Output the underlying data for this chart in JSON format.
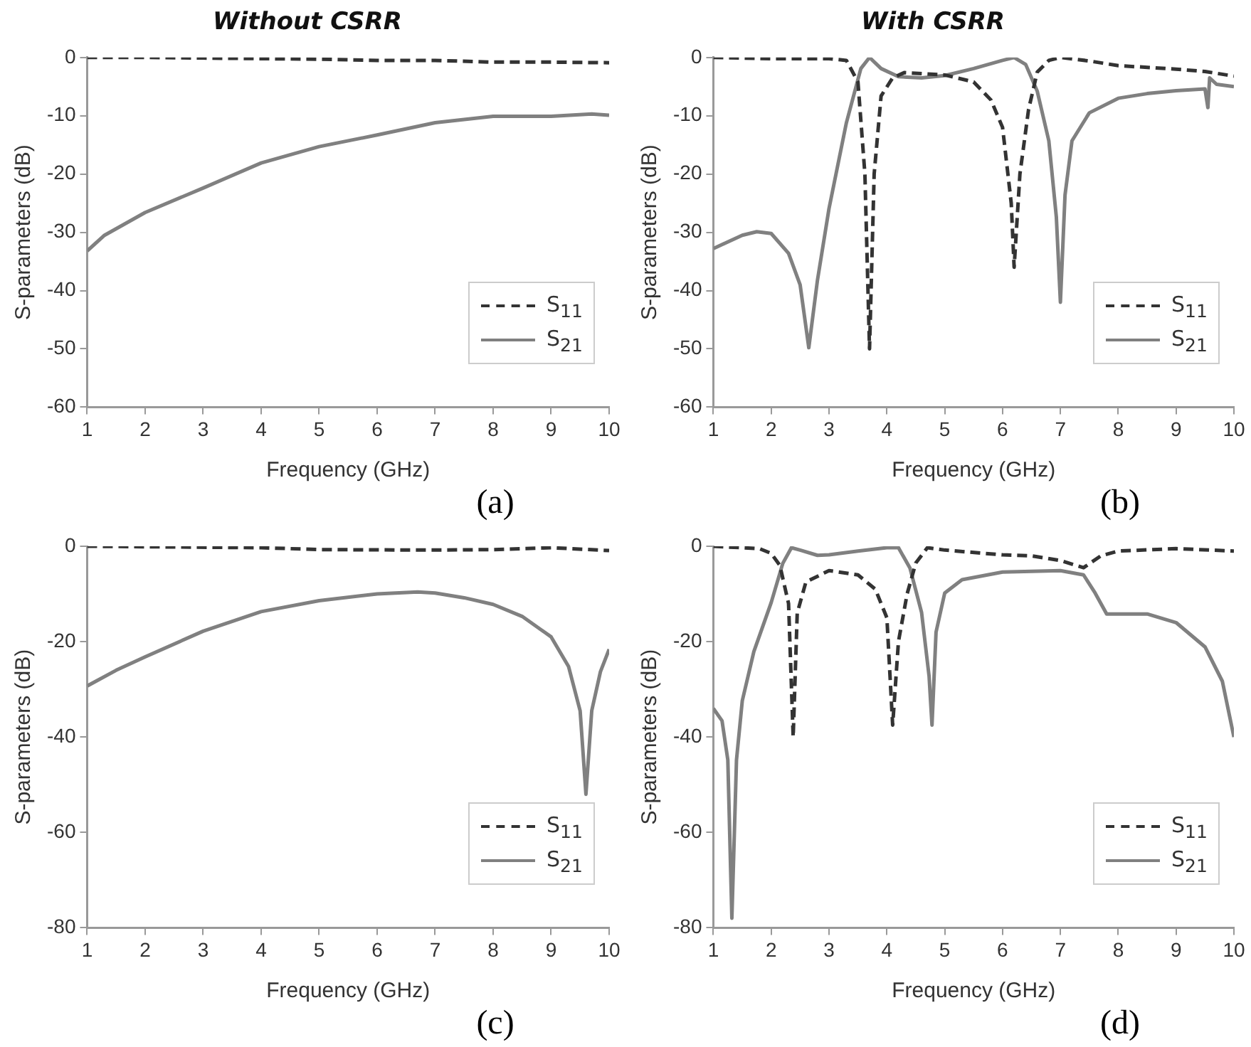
{
  "chart_data": [
    {
      "type": "line",
      "title": "Without CSRR",
      "xlabel": "Frequency (GHz)",
      "ylabel": "S-parameters (dB)",
      "annotations": [
        "(a)"
      ],
      "legend": "bottom right",
      "xlim": [
        1,
        10
      ],
      "xticks": [
        1,
        2,
        3,
        4,
        5,
        6,
        7,
        8,
        9,
        10
      ],
      "ylim": [
        -60,
        0
      ],
      "yticks": [
        -60,
        -50,
        -40,
        -30,
        -20,
        -10,
        0
      ],
      "series": [
        {
          "name": "S$_{11}$",
          "color": "#333333",
          "line_style": "dashed",
          "x": [
            1,
            2,
            3,
            4,
            5,
            6,
            7,
            8,
            9,
            10
          ],
          "values": [
            0,
            0,
            -0.1,
            -0.2,
            -0.3,
            -0.5,
            -0.5,
            -0.8,
            -0.8,
            -0.9
          ]
        },
        {
          "name": "S$_{21}$",
          "color": "#808080",
          "line_style": "solid",
          "x": [
            1,
            1.3,
            2,
            3,
            4,
            5,
            6,
            7,
            8,
            9,
            9.7,
            10
          ],
          "values": [
            -33.2,
            -30.5,
            -26.6,
            -22.4,
            -18.1,
            -15.3,
            -13.3,
            -11.2,
            -10.1,
            -10.1,
            -9.7,
            -9.9
          ]
        }
      ]
    },
    {
      "type": "line",
      "title": "With CSRR",
      "xlabel": "Frequency (GHz)",
      "ylabel": "S-parameters (dB)",
      "annotations": [
        "(b)"
      ],
      "legend": "bottom right",
      "xlim": [
        1,
        10
      ],
      "xticks": [
        1,
        2,
        3,
        4,
        5,
        6,
        7,
        8,
        9,
        10
      ],
      "ylim": [
        -60,
        0
      ],
      "yticks": [
        -60,
        -50,
        -40,
        -30,
        -20,
        -10,
        0
      ],
      "series": [
        {
          "name": "S$_{11}$",
          "color": "#333333",
          "line_style": "dashed",
          "x": [
            1,
            2,
            3,
            3.3,
            3.5,
            3.62,
            3.7,
            3.78,
            3.9,
            4.1,
            4.3,
            5,
            5.5,
            5.8,
            6,
            6.15,
            6.2,
            6.3,
            6.45,
            6.6,
            6.8,
            7,
            7.5,
            8,
            9,
            9.5,
            10
          ],
          "values": [
            0,
            -0.2,
            -0.2,
            -0.5,
            -4.2,
            -20,
            -50,
            -20,
            -6.6,
            -3.5,
            -2.6,
            -3,
            -4.2,
            -7.3,
            -12,
            -25,
            -36,
            -20,
            -8.9,
            -2.5,
            -0.5,
            0,
            -0.6,
            -1.4,
            -2,
            -2.4,
            -3.2
          ]
        },
        {
          "name": "S$_{21}$",
          "color": "#808080",
          "line_style": "solid",
          "x": [
            1,
            1.5,
            1.75,
            2,
            2.3,
            2.5,
            2.65,
            2.8,
            3,
            3.3,
            3.55,
            3.7,
            3.9,
            4.2,
            4.6,
            5,
            5.5,
            6,
            6.2,
            6.4,
            6.6,
            6.8,
            6.93,
            7,
            7.08,
            7.2,
            7.5,
            8,
            8.5,
            9,
            9.5,
            9.55,
            9.58,
            9.7,
            10
          ],
          "values": [
            -32.8,
            -30.5,
            -29.9,
            -30.2,
            -33.6,
            -39,
            -49.8,
            -38.2,
            -25.9,
            -11.2,
            -1.9,
            0,
            -1.9,
            -3.3,
            -3.5,
            -3.1,
            -1.9,
            -0.5,
            0,
            -1.2,
            -5.8,
            -14.3,
            -27.4,
            -42,
            -23.6,
            -14.3,
            -9.5,
            -7,
            -6.2,
            -5.7,
            -5.4,
            -8.6,
            -3.5,
            -4.6,
            -5
          ]
        }
      ]
    },
    {
      "type": "line",
      "xlabel": "Frequency (GHz)",
      "ylabel": "S-parameters (dB)",
      "annotations": [
        "(c)"
      ],
      "legend": "bottom right",
      "xlim": [
        1,
        10
      ],
      "xticks": [
        1,
        2,
        3,
        4,
        5,
        6,
        7,
        8,
        9,
        10
      ],
      "ylim": [
        -80,
        0
      ],
      "yticks": [
        -80,
        -60,
        -40,
        -20,
        0
      ],
      "series": [
        {
          "name": "S$_{11}$",
          "color": "#333333",
          "line_style": "dashed",
          "x": [
            1,
            4,
            5,
            7,
            8,
            9,
            10
          ],
          "values": [
            0,
            -0.3,
            -0.7,
            -0.8,
            -0.7,
            -0.3,
            -0.9
          ]
        },
        {
          "name": "S$_{21}$",
          "color": "#808080",
          "line_style": "solid",
          "x": [
            1,
            1.5,
            2,
            3,
            4,
            5,
            6,
            6.7,
            7,
            7.5,
            8,
            8.5,
            9,
            9.3,
            9.5,
            9.6,
            9.7,
            9.85,
            10
          ],
          "values": [
            -29.3,
            -26,
            -23.2,
            -17.8,
            -13.7,
            -11.4,
            -10,
            -9.6,
            -9.8,
            -10.8,
            -12.2,
            -14.7,
            -19,
            -25.2,
            -34.5,
            -52,
            -34.5,
            -26.3,
            -21.6
          ]
        }
      ]
    },
    {
      "type": "line",
      "xlabel": "Frequency (GHz)",
      "ylabel": "S-parameters (dB)",
      "annotations": [
        "(d)"
      ],
      "legend": "bottom right",
      "xlim": [
        1,
        10
      ],
      "xticks": [
        1,
        2,
        3,
        4,
        5,
        6,
        7,
        8,
        9,
        10
      ],
      "ylim": [
        -80,
        0
      ],
      "yticks": [
        -80,
        -60,
        -40,
        -20,
        0
      ],
      "series": [
        {
          "name": "S$_{11}$",
          "color": "#333333",
          "line_style": "dashed",
          "x": [
            1,
            1.8,
            2,
            2.15,
            2.3,
            2.38,
            2.45,
            2.6,
            3,
            3.5,
            3.8,
            4,
            4.1,
            4.2,
            4.35,
            4.5,
            4.7,
            5,
            6,
            6.5,
            7,
            7.4,
            7.7,
            8,
            9,
            10
          ],
          "values": [
            0,
            -0.5,
            -1.5,
            -4,
            -12,
            -40,
            -14,
            -7.5,
            -5.1,
            -6,
            -9,
            -15,
            -37.5,
            -20,
            -10,
            -3.5,
            -0.3,
            -0.8,
            -1.8,
            -2,
            -3,
            -4.5,
            -2,
            -1,
            -0.5,
            -1
          ]
        },
        {
          "name": "S$_{21}$",
          "color": "#808080",
          "line_style": "solid",
          "x": [
            1,
            1.15,
            1.25,
            1.32,
            1.4,
            1.5,
            1.7,
            2,
            2.2,
            2.35,
            2.5,
            2.8,
            3,
            3.5,
            4,
            4.2,
            4.4,
            4.6,
            4.73,
            4.78,
            4.85,
            5,
            5.3,
            6,
            7,
            7.4,
            7.6,
            7.8,
            8.5,
            9,
            9.5,
            9.8,
            10
          ],
          "values": [
            -34,
            -36.6,
            -44.8,
            -78,
            -44.8,
            -32.4,
            -22.1,
            -11.8,
            -3.6,
            -0.3,
            -0.8,
            -1.9,
            -1.8,
            -1,
            -0.3,
            -0.3,
            -4.6,
            -13.9,
            -27.3,
            -37.5,
            -18,
            -9.8,
            -7,
            -5.4,
            -5.1,
            -6,
            -9.8,
            -14.2,
            -14.2,
            -16,
            -21.1,
            -28.3,
            -40
          ]
        }
      ]
    }
  ]
}
